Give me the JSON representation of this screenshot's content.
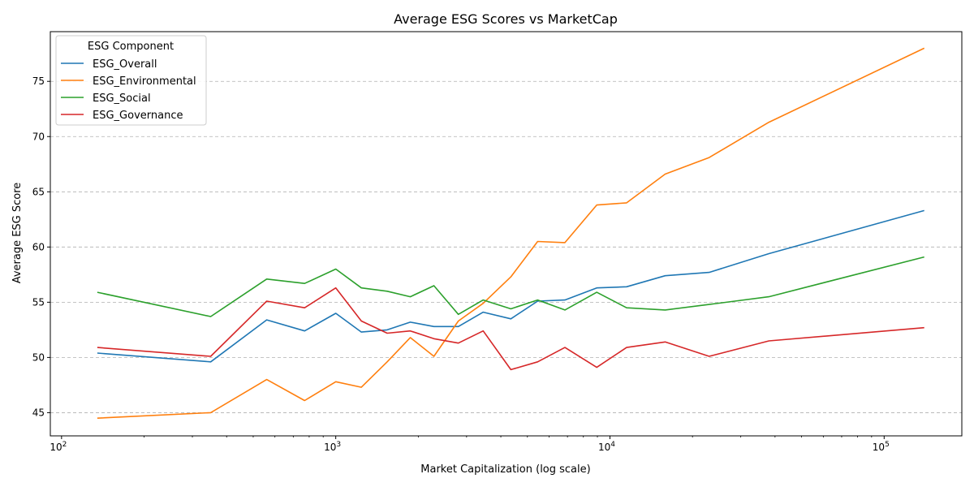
{
  "chart_data": {
    "type": "line",
    "title": "Average ESG Scores vs MarketCap",
    "xlabel": "Market Capitalization (log scale)",
    "ylabel": "Average ESG Score",
    "xscale": "log",
    "xlim": [
      91,
      192000
    ],
    "ylim": [
      42.9,
      79.5
    ],
    "yticks": [
      45,
      50,
      55,
      60,
      65,
      70,
      75
    ],
    "xticks": [
      {
        "value": 100,
        "base": "10",
        "exp": "2"
      },
      {
        "value": 1000,
        "base": "10",
        "exp": "3"
      },
      {
        "value": 10000,
        "base": "10",
        "exp": "4"
      },
      {
        "value": 100000,
        "base": "10",
        "exp": "5"
      }
    ],
    "grid": "y-dashed",
    "legend": {
      "title": "ESG Component",
      "placement": "top-left"
    },
    "x": [
      135,
      350,
      560,
      770,
      1000,
      1240,
      1540,
      1870,
      2280,
      2800,
      3450,
      4350,
      5450,
      6850,
      8950,
      11500,
      15900,
      23000,
      38000,
      140000
    ],
    "series": [
      {
        "name": "ESG_Overall",
        "color": "#1f77b4",
        "values": [
          50.4,
          49.6,
          53.4,
          52.4,
          54.0,
          52.3,
          52.5,
          53.2,
          52.8,
          52.8,
          54.1,
          53.5,
          55.1,
          55.2,
          56.3,
          56.4,
          57.4,
          57.7,
          59.4,
          63.3
        ]
      },
      {
        "name": "ESG_Environmental",
        "color": "#ff7f0e",
        "values": [
          44.5,
          45.0,
          48.0,
          46.1,
          47.8,
          47.3,
          49.6,
          51.8,
          50.1,
          53.3,
          54.9,
          57.3,
          60.5,
          60.4,
          63.8,
          64.0,
          66.6,
          68.1,
          71.3,
          78.0
        ]
      },
      {
        "name": "ESG_Social",
        "color": "#2ca02c",
        "values": [
          55.9,
          53.7,
          57.1,
          56.7,
          58.0,
          56.3,
          56.0,
          55.5,
          56.5,
          53.9,
          55.2,
          54.4,
          55.2,
          54.3,
          55.9,
          54.5,
          54.3,
          54.8,
          55.5,
          59.1
        ]
      },
      {
        "name": "ESG_Governance",
        "color": "#d62728",
        "values": [
          50.9,
          50.1,
          55.1,
          54.5,
          56.3,
          53.3,
          52.2,
          52.4,
          51.7,
          51.3,
          52.4,
          48.9,
          49.6,
          50.9,
          49.1,
          50.9,
          51.4,
          50.1,
          51.5,
          52.7
        ]
      }
    ]
  }
}
